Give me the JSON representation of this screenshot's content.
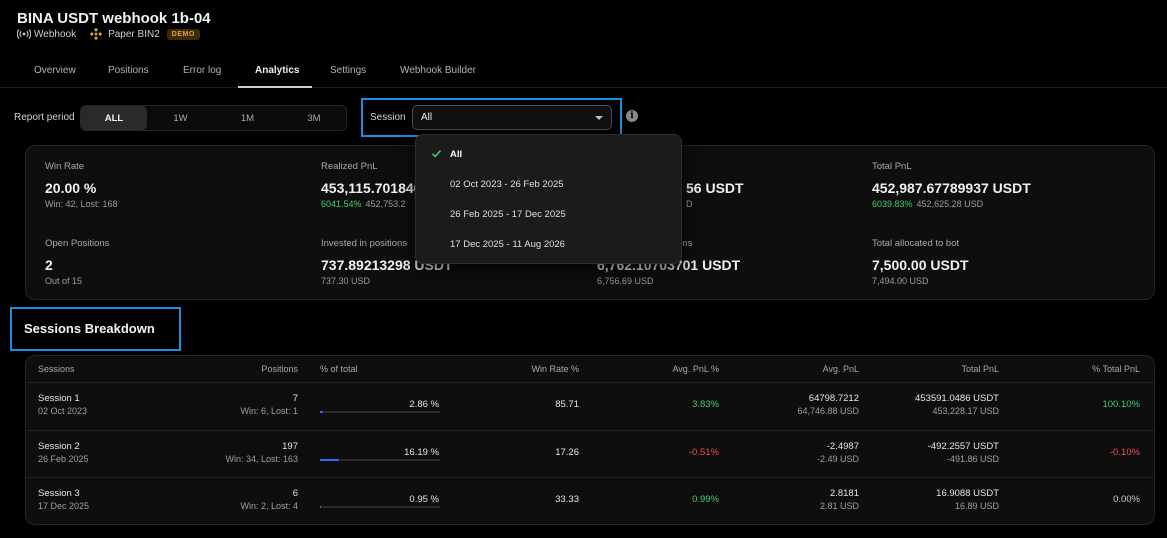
{
  "header": {
    "title": "BINA USDT webhook 1b-04",
    "type_label": "Webhook",
    "exchange_label": "Paper BIN2",
    "badge": "DEMO"
  },
  "tabs": [
    "Overview",
    "Positions",
    "Error log",
    "Analytics",
    "Settings",
    "Webhook Builder"
  ],
  "active_tab": "Analytics",
  "report_period": {
    "label": "Report period",
    "options": [
      "ALL",
      "1W",
      "1M",
      "3M"
    ],
    "selected": "ALL"
  },
  "session": {
    "label": "Session",
    "value": "All",
    "options": [
      "All",
      "02 Oct 2023 - 26 Feb 2025",
      "26 Feb 2025 - 17 Dec 2025",
      "17 Dec 2025 - 11 Aug 2026"
    ]
  },
  "stats": {
    "win_rate": {
      "label": "Win Rate",
      "value": "20.00 %",
      "sub": "Win: 42, Lost: 168"
    },
    "realized_pnl": {
      "label": "Realized PnL",
      "value": "453,115.701840",
      "pct": "6041.54%",
      "sub": "452,753.2"
    },
    "unrealized_pnl": {
      "value": "56 USDT",
      "sub": "D"
    },
    "total_pnl": {
      "label": "Total PnL",
      "value": "452,987.67789937 USDT",
      "pct": "6039.83%",
      "sub": "452,625.28 USD"
    },
    "open_positions": {
      "label": "Open Positions",
      "value": "2",
      "sub": "Out of 15"
    },
    "invested": {
      "label": "Invested in positions",
      "value": "737.89213298 USDT",
      "sub": "737.30 USD"
    },
    "in_positions": {
      "label": "ons",
      "value": "6,762.10703701 USDT",
      "sub": "6,756.69 USD"
    },
    "allocated": {
      "label": "Total allocated to bot",
      "value": "7,500.00 USDT",
      "sub": "7,494.00 USD"
    }
  },
  "sessions_breakdown": {
    "title": "Sessions Breakdown",
    "columns": [
      "Sessions",
      "Positions",
      "% of total",
      "Win Rate %",
      "Avg. PnL %",
      "Avg. PnL",
      "Total PnL",
      "% Total PnL"
    ],
    "rows": [
      {
        "name": "Session 1",
        "date": "02 Oct 2023",
        "positions": "7",
        "wl": "Win: 6, Lost: 1",
        "pct_total": "2.86 %",
        "pct_value": 2.86,
        "win_rate": "85.71",
        "avg_pnl_pct": "3.83%",
        "avg_pnl": "64798.7212",
        "avg_pnl_usd": "64,746.88 USD",
        "total_pnl": "453591.0486 USDT",
        "total_pnl_usd": "453,228.17 USD",
        "pct_total_pnl": "100.10%"
      },
      {
        "name": "Session 2",
        "date": "26 Feb 2025",
        "positions": "197",
        "wl": "Win: 34, Lost: 163",
        "pct_total": "16.19 %",
        "pct_value": 16.19,
        "win_rate": "17.26",
        "avg_pnl_pct": "-0.51%",
        "avg_pnl": "-2.4987",
        "avg_pnl_usd": "-2.49 USD",
        "total_pnl": "-492.2557 USDT",
        "total_pnl_usd": "-491.86 USD",
        "pct_total_pnl": "-0.10%"
      },
      {
        "name": "Session 3",
        "date": "17 Dec 2025",
        "positions": "6",
        "wl": "Win: 2, Lost: 4",
        "pct_total": "0.95 %",
        "pct_value": 0.95,
        "win_rate": "33.33",
        "avg_pnl_pct": "0.99%",
        "avg_pnl": "2.8181",
        "avg_pnl_usd": "2.81 USD",
        "total_pnl": "16.9088 USDT",
        "total_pnl_usd": "16.89 USD",
        "pct_total_pnl": "0.00%"
      }
    ]
  },
  "colors": {
    "accent_blue": "#1e8fe0",
    "positive": "#3ecf6a",
    "negative": "#ef4f57",
    "bar": "#2f6df6",
    "demo_badge": "#e0a23a"
  }
}
